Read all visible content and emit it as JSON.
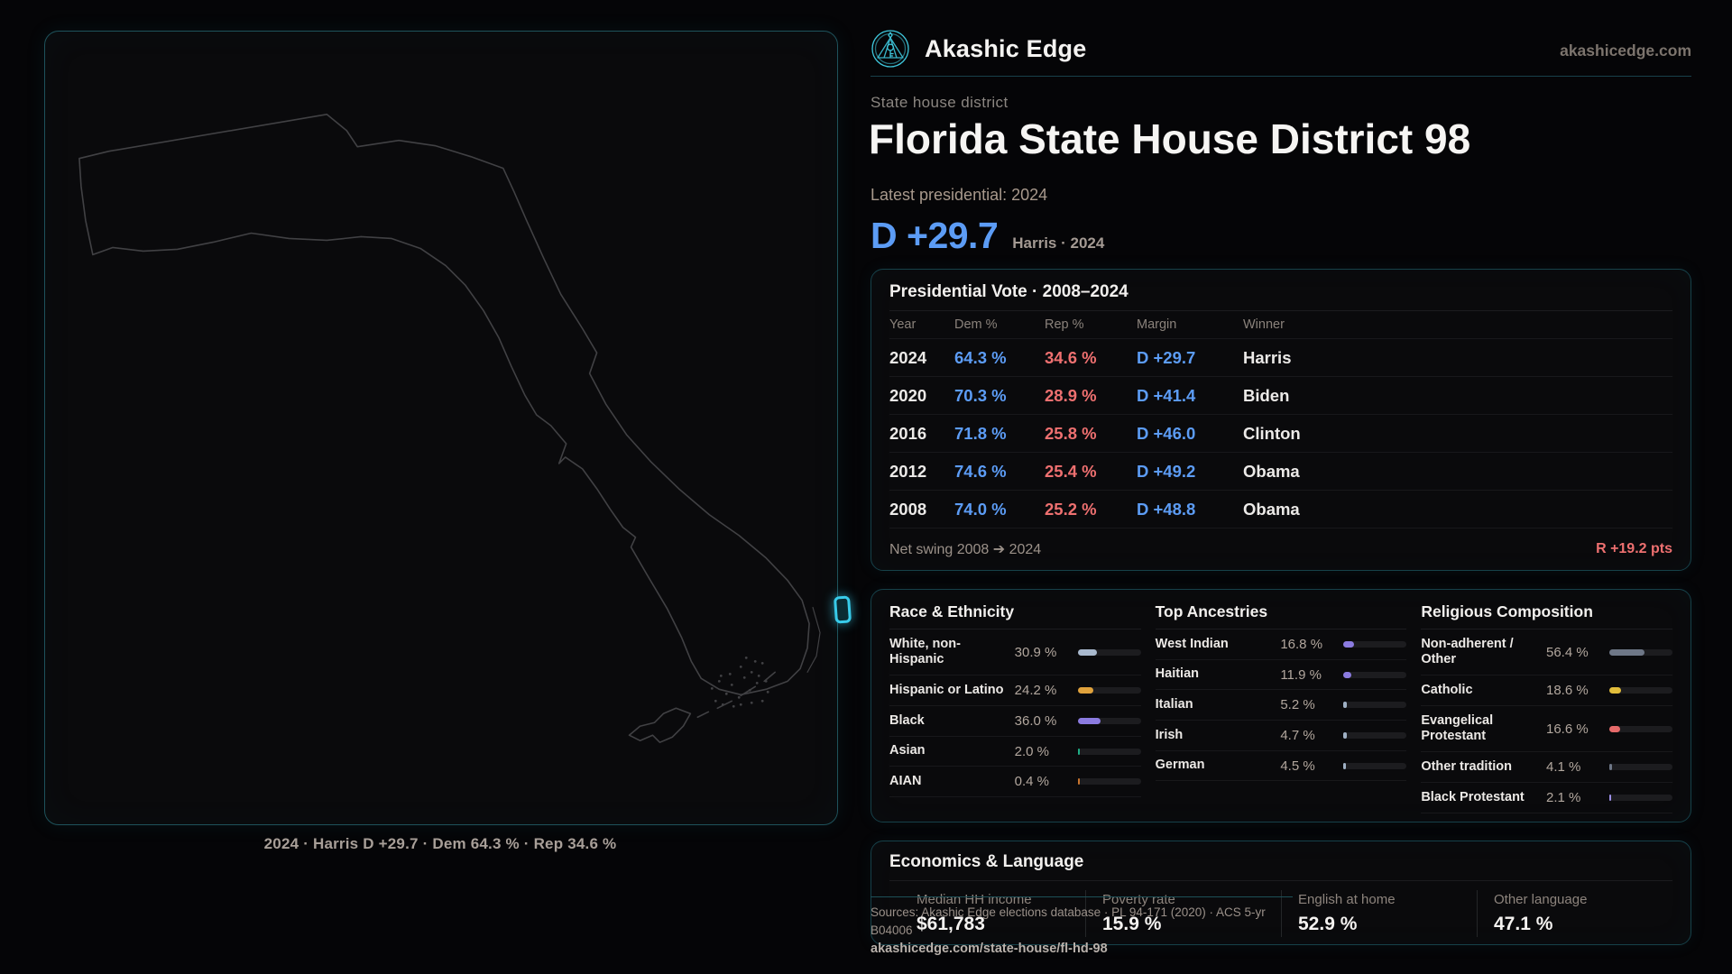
{
  "brand": {
    "name": "Akashic Edge",
    "domain": "akashicedge.com",
    "accent_color": "#38cbea"
  },
  "colors": {
    "dem_blue": "#5c9cf5",
    "rep_red": "#ee7070",
    "card_border_teal": "#164149"
  },
  "page": {
    "kicker": "State house district",
    "title": "Florida State House District 98",
    "latest_label": "Latest presidential: 2024",
    "margin_value": "D +29.7",
    "margin_context": "Harris · 2024"
  },
  "map": {
    "caption": "2024 · Harris D +29.7 · Dem 64.3 % · Rep 34.6 %",
    "highlight_color": "#38cbea"
  },
  "presidential_table": {
    "title": "Presidential Vote · 2008–2024",
    "columns": [
      "Year",
      "Dem %",
      "Rep %",
      "Margin",
      "Winner"
    ],
    "rows": [
      {
        "year": "2024",
        "dem": "64.3 %",
        "rep": "34.6 %",
        "margin": "D +29.7",
        "winner": "Harris"
      },
      {
        "year": "2020",
        "dem": "70.3 %",
        "rep": "28.9 %",
        "margin": "D +41.4",
        "winner": "Biden"
      },
      {
        "year": "2016",
        "dem": "71.8 %",
        "rep": "25.8 %",
        "margin": "D +46.0",
        "winner": "Clinton"
      },
      {
        "year": "2012",
        "dem": "74.6 %",
        "rep": "25.4 %",
        "margin": "D +49.2",
        "winner": "Obama"
      },
      {
        "year": "2008",
        "dem": "74.0 %",
        "rep": "25.2 %",
        "margin": "D +48.8",
        "winner": "Obama"
      }
    ],
    "net_swing_label": "Net swing 2008 ➔ 2024",
    "net_swing_value": "R +19.2 pts"
  },
  "race_panel": {
    "title": "Race & Ethnicity",
    "items": [
      {
        "label": "White, non-Hispanic",
        "value": "30.9 %",
        "pct": 30.9,
        "color": "#a9b9ce"
      },
      {
        "label": "Hispanic or Latino",
        "value": "24.2 %",
        "pct": 24.2,
        "color": "#e0a23c"
      },
      {
        "label": "Black",
        "value": "36.0 %",
        "pct": 36.0,
        "color": "#8b7be0"
      },
      {
        "label": "Asian",
        "value": "2.0 %",
        "pct": 2.0,
        "color": "#1fae86"
      },
      {
        "label": "AIAN",
        "value": "0.4 %",
        "pct": 0.4,
        "color": "#c8742e"
      }
    ]
  },
  "ancestry_panel": {
    "title": "Top Ancestries",
    "items": [
      {
        "label": "West Indian",
        "value": "16.8 %",
        "pct": 16.8,
        "color": "#8b7be0"
      },
      {
        "label": "Haitian",
        "value": "11.9 %",
        "pct": 11.9,
        "color": "#8b7be0"
      },
      {
        "label": "Italian",
        "value": "5.2 %",
        "pct": 5.2,
        "color": "#9fb0c4"
      },
      {
        "label": "Irish",
        "value": "4.7 %",
        "pct": 4.7,
        "color": "#9fb0c4"
      },
      {
        "label": "German",
        "value": "4.5 %",
        "pct": 4.5,
        "color": "#9fb0c4"
      }
    ]
  },
  "religion_panel": {
    "title": "Religious Composition",
    "items": [
      {
        "label": "Non-adherent / Other",
        "value": "56.4 %",
        "pct": 56.4,
        "color": "#6e7787"
      },
      {
        "label": "Catholic",
        "value": "18.6 %",
        "pct": 18.6,
        "color": "#e2bd3b"
      },
      {
        "label": "Evangelical Protestant",
        "value": "16.6 %",
        "pct": 16.6,
        "color": "#e66a6a"
      },
      {
        "label": "Other tradition",
        "value": "4.1 %",
        "pct": 4.1,
        "color": "#6e7787"
      },
      {
        "label": "Black Protestant",
        "value": "2.1 %",
        "pct": 2.1,
        "color": "#9c8fe8"
      }
    ]
  },
  "econ_panel": {
    "title": "Economics & Language",
    "stats": [
      {
        "label": "Median HH income",
        "value": "$61,783"
      },
      {
        "label": "Poverty rate",
        "value": "15.9 %"
      },
      {
        "label": "English at home",
        "value": "52.9 %"
      },
      {
        "label": "Other language",
        "value": "47.1 %"
      }
    ]
  },
  "footer": {
    "line1": "Sources: Akashic Edge elections database · PL 94-171 (2020) · ACS 5-yr B04006",
    "line2": "akashicedge.com/state-house/fl-hd-98"
  }
}
